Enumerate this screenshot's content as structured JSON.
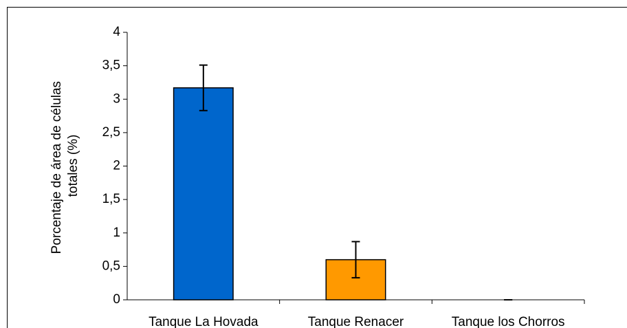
{
  "chart_data": {
    "type": "bar",
    "y_label": [
      "Porcentaje de área de células",
      "totales (%)"
    ],
    "categories": [
      "Tanque La Hovada",
      "Tanque Renacer",
      "Tanque los Chorros"
    ],
    "values": [
      3.17,
      0.6,
      0
    ],
    "errors": [
      0.34,
      0.27,
      0
    ],
    "colors": [
      "#0066cc",
      "#ff9900",
      "#999999"
    ],
    "ylim": [
      0,
      4
    ],
    "yticks": [
      0,
      {
        "value": 0.5,
        "label": "0,5"
      },
      1,
      {
        "value": 1.5,
        "label": "1,5"
      },
      2,
      {
        "value": 2.5,
        "label": "2,5"
      },
      3,
      {
        "value": 3.5,
        "label": "3,5"
      },
      4
    ],
    "grid": false
  }
}
